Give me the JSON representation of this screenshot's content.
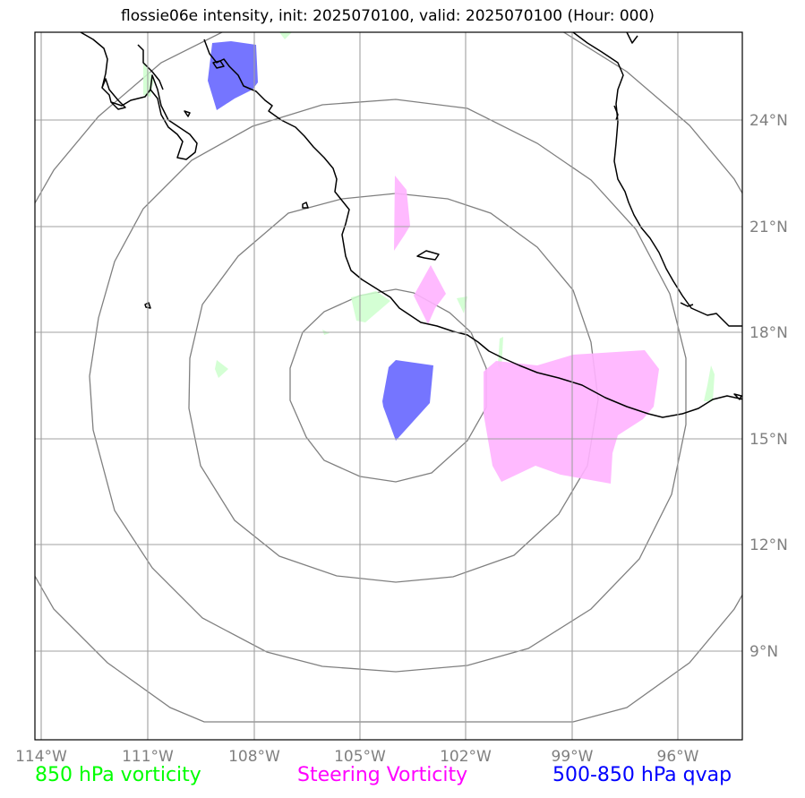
{
  "title": "flossie06e intensity, init: 2025070100, valid: 2025070100 (Hour: 000)",
  "lon_labels": [
    "114°W",
    "111°W",
    "108°W",
    "105°W",
    "102°W",
    "99°W",
    "96°W"
  ],
  "lat_labels": [
    "24°N",
    "21°N",
    "18°N",
    "15°N",
    "12°N",
    "9°N"
  ],
  "legend": {
    "vort850": "850 hPa vorticity",
    "steering": "Steering Vorticity",
    "qvap": "500-850 hPa qvap"
  },
  "colors": {
    "vort850_text": "#00ff00",
    "steering_text": "#ff00ff",
    "qvap_text": "#0000ff",
    "vort850_fill": "#ccffcc",
    "steering_fill": "#ffb3ff",
    "qvap_fill": "#5d5dff",
    "gridlines": "#a0a0a0",
    "range_rings": "#808080",
    "coastline": "#000000"
  },
  "map_extent": {
    "lon_min": -114.2,
    "lon_max": -94.2,
    "lat_min": 6.5,
    "lat_max": 26.5
  },
  "storm_center": {
    "lon": -104.0,
    "lat": 17.0
  },
  "range_ring_count": 4
}
